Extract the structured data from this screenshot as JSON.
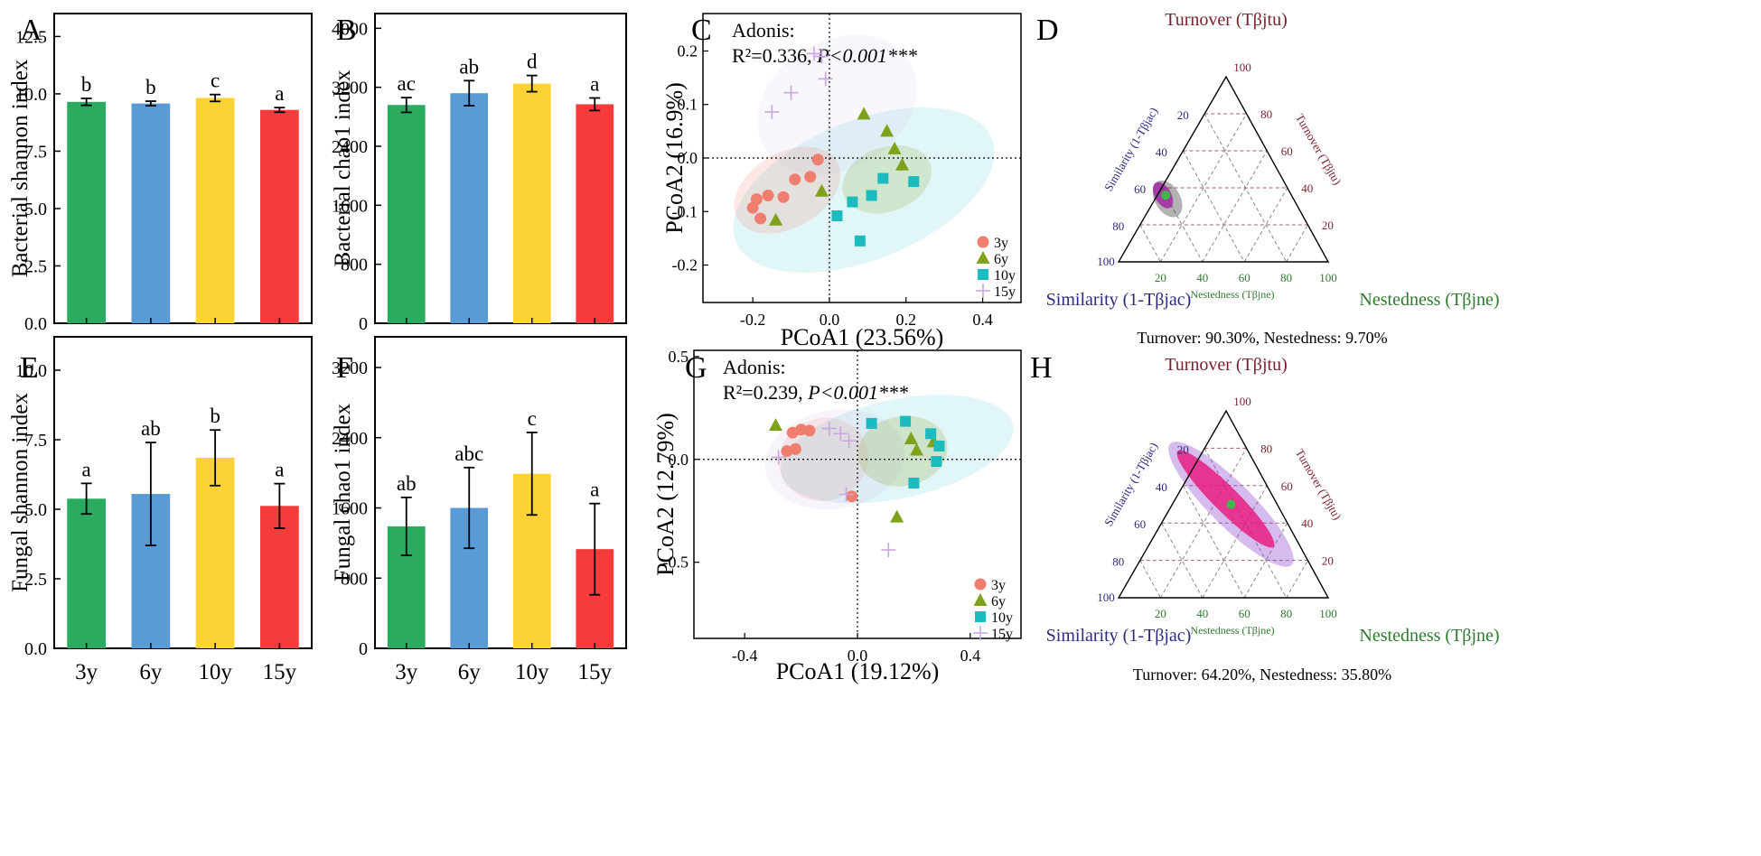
{
  "colors": {
    "y3": "#2bab5f",
    "y6": "#5b9bd5",
    "y10": "#fdd234",
    "y15": "#f53b3b",
    "pt3": "#f07e6e",
    "pt6": "#7fa11c",
    "pt10": "#1bbbbf",
    "pt15": "#c9a6e0",
    "turnover": "#7a1f2b",
    "similarity": "#2b2b80",
    "nested": "#2f7a2f"
  },
  "chart_data": [
    {
      "type": "bar",
      "panel": "A",
      "ylabel": "Bacterial shannon index",
      "ylim": [
        0,
        13.5
      ],
      "ticks": [
        "0.0",
        "2.5",
        "5.0",
        "7.5",
        "10.0",
        "12.5"
      ],
      "tickvals": [
        0,
        2.5,
        5,
        7.5,
        10,
        12.5
      ],
      "categories": [
        "3y",
        "6y",
        "10y",
        "15y"
      ],
      "values": [
        9.65,
        9.58,
        9.82,
        9.3
      ],
      "errors": [
        0.15,
        0.1,
        0.15,
        0.1
      ],
      "letters": [
        "b",
        "b",
        "c",
        "a"
      ]
    },
    {
      "type": "bar",
      "panel": "B",
      "ylabel": "Bacterial chao1 index",
      "ylim": [
        0,
        4200
      ],
      "ticks": [
        "0",
        "800",
        "1600",
        "2400",
        "3200",
        "4000"
      ],
      "tickvals": [
        0,
        800,
        1600,
        2400,
        3200,
        4000
      ],
      "categories": [
        "3y",
        "6y",
        "10y",
        "15y"
      ],
      "values": [
        2960,
        3120,
        3250,
        2970
      ],
      "errors": [
        100,
        170,
        110,
        85
      ],
      "letters": [
        "ac",
        "ab",
        "d",
        "a"
      ]
    },
    {
      "type": "bar",
      "panel": "E",
      "ylabel": "Fungal shannon index",
      "ylim": [
        0,
        11.2
      ],
      "ticks": [
        "0.0",
        "2.5",
        "5.0",
        "7.5",
        "10.0"
      ],
      "tickvals": [
        0,
        2.5,
        5,
        7.5,
        10
      ],
      "categories": [
        "3y",
        "6y",
        "10y",
        "15y"
      ],
      "values": [
        5.38,
        5.55,
        6.85,
        5.12
      ],
      "errors": [
        0.55,
        1.85,
        1.0,
        0.8
      ],
      "letters": [
        "a",
        "ab",
        "b",
        "a"
      ]
    },
    {
      "type": "bar",
      "panel": "F",
      "ylabel": "Fungal chao1 index",
      "ylim": [
        0,
        3550
      ],
      "ticks": [
        "0",
        "800",
        "1600",
        "2400",
        "3200"
      ],
      "tickvals": [
        0,
        800,
        1600,
        2400,
        3200
      ],
      "categories": [
        "3y",
        "6y",
        "10y",
        "15y"
      ],
      "values": [
        1390,
        1600,
        1990,
        1130
      ],
      "errors": [
        330,
        460,
        470,
        520
      ],
      "letters": [
        "ab",
        "abc",
        "c",
        "a"
      ]
    },
    {
      "type": "scatter",
      "panel": "C",
      "xlabel": "PCoA1 (23.56%)",
      "ylabel": "PCoA2 (16.9%)",
      "xlim": [
        -0.33,
        0.5
      ],
      "ylim": [
        -0.27,
        0.27
      ],
      "xticks": [
        "-0.2",
        "0.0",
        "0.2",
        "0.4"
      ],
      "xtickvals": [
        -0.2,
        0,
        0.2,
        0.4
      ],
      "yticks": [
        "0.2",
        "0.1",
        "0.0",
        "-0.1",
        "-0.2"
      ],
      "ytickvals": [
        0.2,
        0.1,
        0,
        -0.1,
        -0.2
      ],
      "annotation_title": "Adonis:",
      "annotation_r2": "R²=0.336, ",
      "annotation_p": "P<0.001***",
      "legend": [
        "3y",
        "6y",
        "10y",
        "15y"
      ],
      "series": [
        {
          "name": "3y",
          "marker": "circle",
          "x": [
            -0.19,
            -0.16,
            -0.12,
            -0.09,
            -0.05,
            -0.03,
            -0.2,
            -0.18
          ],
          "y": [
            -0.077,
            -0.07,
            -0.073,
            -0.04,
            -0.035,
            -0.003,
            -0.093,
            -0.113
          ]
        },
        {
          "name": "6y",
          "marker": "triangle",
          "x": [
            0.09,
            0.15,
            0.17,
            0.19,
            -0.02,
            -0.14
          ],
          "y": [
            0.082,
            0.05,
            0.017,
            -0.013,
            -0.062,
            -0.116
          ]
        },
        {
          "name": "10y",
          "marker": "square",
          "x": [
            0.14,
            0.22,
            0.11,
            0.06,
            0.02,
            0.08
          ],
          "y": [
            -0.038,
            -0.044,
            -0.07,
            -0.082,
            -0.108,
            -0.155
          ]
        },
        {
          "name": "15y",
          "marker": "plus",
          "x": [
            -0.04,
            -0.02,
            -0.01,
            -0.1,
            -0.15
          ],
          "y": [
            0.195,
            0.19,
            0.148,
            0.122,
            0.086
          ]
        }
      ]
    },
    {
      "type": "scatter",
      "panel": "G",
      "xlabel": "PCoA1 (19.12%)",
      "ylabel": "PCoA2 (12.79%)",
      "xlim": [
        -0.58,
        0.58
      ],
      "ylim": [
        -0.87,
        0.53
      ],
      "xticks": [
        "-0.4",
        "0.0",
        "0.4"
      ],
      "xtickvals": [
        -0.4,
        0,
        0.4
      ],
      "yticks": [
        "0.5",
        "0.0",
        "-0.5"
      ],
      "ytickvals": [
        0.5,
        0,
        -0.5
      ],
      "annotation_title": "Adonis:",
      "annotation_r2": "R²=0.239, ",
      "annotation_p": "P<0.001***",
      "legend": [
        "3y",
        "6y",
        "10y",
        "15y"
      ],
      "series": [
        {
          "name": "3y",
          "marker": "circle",
          "x": [
            -0.2,
            -0.23,
            -0.17,
            -0.22,
            -0.25,
            -0.02
          ],
          "y": [
            0.145,
            0.13,
            0.14,
            0.05,
            0.04,
            -0.18
          ]
        },
        {
          "name": "6y",
          "marker": "triangle",
          "x": [
            -0.29,
            0.19,
            0.27,
            0.21,
            0.14
          ],
          "y": [
            0.165,
            0.1,
            0.085,
            0.045,
            -0.28
          ]
        },
        {
          "name": "10y",
          "marker": "square",
          "x": [
            0.05,
            0.17,
            0.26,
            0.29,
            0.28,
            0.2
          ],
          "y": [
            0.175,
            0.185,
            0.125,
            0.065,
            -0.01,
            -0.115
          ]
        },
        {
          "name": "15y",
          "marker": "plus",
          "x": [
            -0.1,
            -0.06,
            -0.03,
            -0.04,
            0.11,
            -0.28
          ],
          "y": [
            0.15,
            0.125,
            0.09,
            -0.17,
            -0.44,
            0.01
          ]
        }
      ]
    },
    {
      "type": "ternary",
      "panel": "D",
      "title_top": "Turnover (Tβjtu)",
      "left_label": "Similarity (1-Tβjac)",
      "right_label": "Nestedness (Tβjne)",
      "side_left": "Similarity (1-Tβjac)",
      "side_right": "Turnover (Tβjtu)",
      "side_bottom": "Nestedness (Tβjne)",
      "ticks": [
        "20",
        "40",
        "60",
        "80",
        "100"
      ],
      "tickvals": [
        20,
        40,
        60,
        80,
        100
      ],
      "summary": "Turnover: 90.30%, Nestedness: 9.70%",
      "centroid": {
        "sim": 60,
        "turn": 36,
        "nest": 4
      }
    },
    {
      "type": "ternary",
      "panel": "H",
      "title_top": "Turnover (Tβjtu)",
      "left_label": "Similarity (1-Tβjac)",
      "right_label": "Nestedness (Tβjne)",
      "side_left": "Similarity (1-Tβjac)",
      "side_right": "Turnover (Tβjtu)",
      "side_bottom": "Nestedness (Tβjne)",
      "ticks": [
        "20",
        "40",
        "60",
        "80",
        "100"
      ],
      "tickvals": [
        20,
        40,
        60,
        80,
        100
      ],
      "summary": "Turnover: 64.20%, Nestedness: 35.80%",
      "centroid": {
        "sim": 22,
        "turn": 50,
        "nest": 28
      }
    }
  ]
}
